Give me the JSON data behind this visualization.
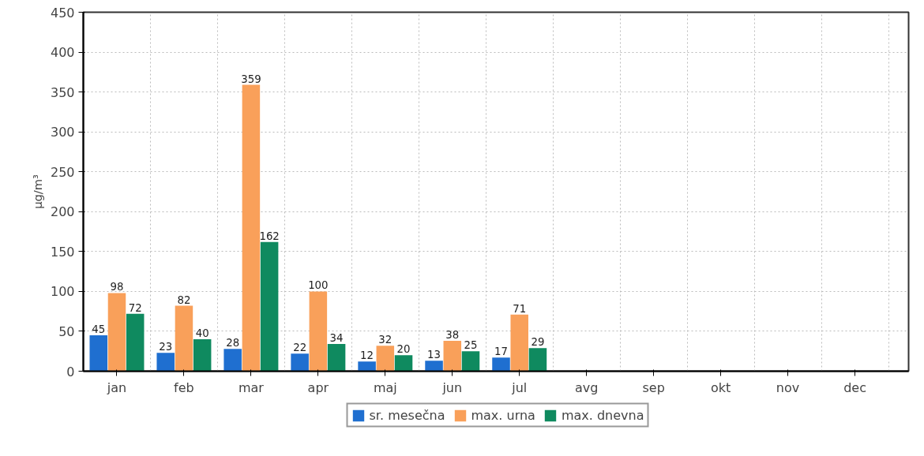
{
  "chart_data": {
    "type": "bar",
    "ylabel": "µg/m³",
    "categories": [
      "jan",
      "feb",
      "mar",
      "apr",
      "maj",
      "jun",
      "jul",
      "avg",
      "sep",
      "okt",
      "nov",
      "dec"
    ],
    "series": [
      {
        "name": "sr. mesečna",
        "color": "#1f6fd0",
        "values": [
          45,
          23,
          28,
          22,
          12,
          13,
          17,
          null,
          null,
          null,
          null,
          null
        ]
      },
      {
        "name": "max. urna",
        "color": "#f9a05a",
        "values": [
          98,
          82,
          359,
          100,
          32,
          38,
          71,
          null,
          null,
          null,
          null,
          null
        ]
      },
      {
        "name": "max. dnevna",
        "color": "#0f8a5f",
        "values": [
          72,
          40,
          162,
          34,
          20,
          25,
          29,
          null,
          null,
          null,
          null,
          null
        ]
      }
    ],
    "ylim": [
      0,
      450
    ],
    "yticks": [
      0,
      50,
      100,
      150,
      200,
      250,
      300,
      350,
      400,
      450
    ],
    "grid": true,
    "legend": "bottom",
    "data_labels": true
  }
}
